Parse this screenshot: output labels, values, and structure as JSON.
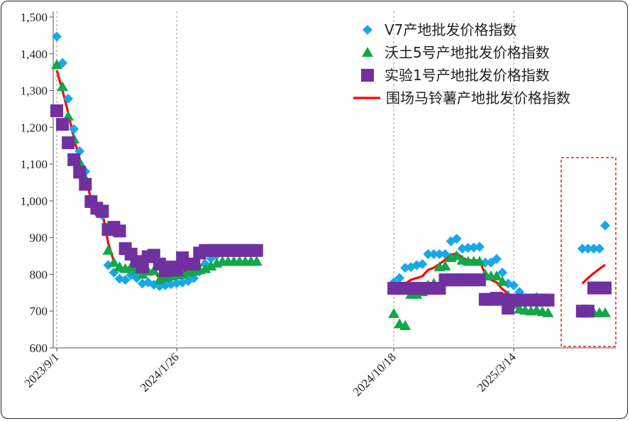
{
  "chart_data": {
    "type": "scatter",
    "title": "",
    "xlabel": "",
    "ylabel": "",
    "ylim": [
      600,
      1500
    ],
    "yticks": [
      "600",
      "700",
      "800",
      "900",
      "1,000",
      "1,100",
      "1,200",
      "1,300",
      "1,400",
      "1,500"
    ],
    "xticks": [
      "2023/9/1",
      "2024/1/26",
      "2024/10/18",
      "2025/3/14"
    ],
    "grid": "vertical dashed",
    "legend_position": "top-right",
    "highlight_box": "dashed red box around most recent period",
    "series": [
      {
        "name": "V7产地批发价格指数",
        "marker": "diamond",
        "color": "#18a8e8",
        "points": [
          [
            "2023/9/1",
            1447
          ],
          [
            "2023/9/8",
            1375
          ],
          [
            "2023/9/15",
            1278
          ],
          [
            "2023/9/22",
            1195
          ],
          [
            "2023/9/29",
            1135
          ],
          [
            "2023/10/6",
            1080
          ],
          [
            "2023/10/13",
            1000
          ],
          [
            "2023/10/20",
            968
          ],
          [
            "2023/10/27",
            960
          ],
          [
            "2023/11/3",
            825
          ],
          [
            "2023/11/10",
            805
          ],
          [
            "2023/11/17",
            788
          ],
          [
            "2023/11/24",
            785
          ],
          [
            "2023/12/1",
            798
          ],
          [
            "2023/12/8",
            790
          ],
          [
            "2023/12/15",
            775
          ],
          [
            "2023/12/22",
            778
          ],
          [
            "2023/12/29",
            772
          ],
          [
            "2024/1/5",
            768
          ],
          [
            "2024/1/12",
            770
          ],
          [
            "2024/1/19",
            773
          ],
          [
            "2024/1/26",
            776
          ],
          [
            "2024/2/2",
            778
          ],
          [
            "2024/2/9",
            782
          ],
          [
            "2024/2/16",
            790
          ],
          [
            "2024/2/23",
            808
          ],
          [
            "2024/3/1",
            828
          ],
          [
            "2024/3/8",
            843
          ],
          [
            "2024/3/15",
            853
          ],
          [
            "2024/3/22",
            858
          ],
          [
            "2024/3/29",
            861
          ],
          [
            "2024/4/5",
            863
          ],
          [
            "2024/4/12",
            863
          ],
          [
            "2024/4/19",
            863
          ],
          [
            "2024/4/26",
            863
          ],
          [
            "2024/5/3",
            863
          ],
          [
            "2024/10/18",
            778
          ],
          [
            "2024/10/25",
            790
          ],
          [
            "2024/11/1",
            818
          ],
          [
            "2024/11/8",
            820
          ],
          [
            "2024/11/15",
            825
          ],
          [
            "2024/11/22",
            828
          ],
          [
            "2024/11/29",
            855
          ],
          [
            "2024/12/6",
            855
          ],
          [
            "2024/12/13",
            855
          ],
          [
            "2024/12/20",
            855
          ],
          [
            "2024/12/27",
            890
          ],
          [
            "2025/1/3",
            897
          ],
          [
            "2025/1/10",
            870
          ],
          [
            "2025/1/17",
            872
          ],
          [
            "2025/1/24",
            873
          ],
          [
            "2025/1/31",
            875
          ],
          [
            "2025/2/7",
            832
          ],
          [
            "2025/2/14",
            832
          ],
          [
            "2025/2/21",
            842
          ],
          [
            "2025/2/28",
            805
          ],
          [
            "2025/3/7",
            775
          ],
          [
            "2025/3/14",
            770
          ],
          [
            "2025/3/21",
            752
          ],
          [
            "2025/3/28",
            735
          ],
          [
            "2025/4/4",
            735
          ],
          [
            "2025/4/11",
            738
          ],
          [
            "2025/4/18",
            735
          ],
          [
            "2025/4/25",
            733
          ],
          [
            "2025/6/6",
            870
          ],
          [
            "2025/6/13",
            870
          ],
          [
            "2025/6/20",
            870
          ],
          [
            "2025/6/27",
            870
          ],
          [
            "2025/7/4",
            933
          ]
        ]
      },
      {
        "name": "沃土5号产地批发价格指数",
        "marker": "triangle",
        "color": "#10a848",
        "points": [
          [
            "2023/9/1",
            1370
          ],
          [
            "2023/9/8",
            1310
          ],
          [
            "2023/9/15",
            1230
          ],
          [
            "2023/9/22",
            1168
          ],
          [
            "2023/9/29",
            1105
          ],
          [
            "2023/10/6",
            1060
          ],
          [
            "2023/10/13",
            1000
          ],
          [
            "2023/10/20",
            975
          ],
          [
            "2023/10/27",
            965
          ],
          [
            "2023/11/3",
            865
          ],
          [
            "2023/11/10",
            832
          ],
          [
            "2023/11/17",
            820
          ],
          [
            "2023/11/24",
            815
          ],
          [
            "2023/12/1",
            820
          ],
          [
            "2023/12/8",
            812
          ],
          [
            "2023/12/15",
            800
          ],
          [
            "2023/12/22",
            808
          ],
          [
            "2023/12/29",
            810
          ],
          [
            "2024/1/5",
            785
          ],
          [
            "2024/1/12",
            790
          ],
          [
            "2024/1/19",
            795
          ],
          [
            "2024/1/26",
            798
          ],
          [
            "2024/2/2",
            800
          ],
          [
            "2024/2/9",
            805
          ],
          [
            "2024/2/16",
            808
          ],
          [
            "2024/2/23",
            812
          ],
          [
            "2024/3/1",
            815
          ],
          [
            "2024/3/8",
            822
          ],
          [
            "2024/3/15",
            830
          ],
          [
            "2024/3/22",
            835
          ],
          [
            "2024/3/29",
            835
          ],
          [
            "2024/4/5",
            835
          ],
          [
            "2024/4/12",
            835
          ],
          [
            "2024/4/19",
            835
          ],
          [
            "2024/4/26",
            835
          ],
          [
            "2024/5/3",
            835
          ],
          [
            "2024/10/18",
            693
          ],
          [
            "2024/10/25",
            665
          ],
          [
            "2024/11/1",
            660
          ],
          [
            "2024/11/8",
            745
          ],
          [
            "2024/11/15",
            745
          ],
          [
            "2024/11/22",
            752
          ],
          [
            "2024/11/29",
            770
          ],
          [
            "2024/12/6",
            775
          ],
          [
            "2024/12/13",
            820
          ],
          [
            "2024/12/20",
            822
          ],
          [
            "2024/12/27",
            845
          ],
          [
            "2025/1/3",
            850
          ],
          [
            "2025/1/10",
            838
          ],
          [
            "2025/1/17",
            835
          ],
          [
            "2025/1/24",
            835
          ],
          [
            "2025/1/31",
            835
          ],
          [
            "2025/2/7",
            800
          ],
          [
            "2025/2/14",
            795
          ],
          [
            "2025/2/21",
            795
          ],
          [
            "2025/2/28",
            780
          ],
          [
            "2025/3/7",
            742
          ],
          [
            "2025/3/14",
            718
          ],
          [
            "2025/3/21",
            705
          ],
          [
            "2025/3/28",
            702
          ],
          [
            "2025/4/4",
            700
          ],
          [
            "2025/4/11",
            702
          ],
          [
            "2025/4/18",
            698
          ],
          [
            "2025/4/25",
            695
          ],
          [
            "2025/6/6",
            695
          ],
          [
            "2025/6/13",
            695
          ],
          [
            "2025/6/20",
            695
          ],
          [
            "2025/6/27",
            695
          ],
          [
            "2025/7/4",
            695
          ]
        ]
      },
      {
        "name": "实验1号产地批发价格指数",
        "marker": "square",
        "color": "#7030a0",
        "points": [
          [
            "2023/9/1",
            1245
          ],
          [
            "2023/9/8",
            1208
          ],
          [
            "2023/9/15",
            1158
          ],
          [
            "2023/9/22",
            1112
          ],
          [
            "2023/9/29",
            1078
          ],
          [
            "2023/10/6",
            1045
          ],
          [
            "2023/10/13",
            998
          ],
          [
            "2023/10/20",
            980
          ],
          [
            "2023/10/27",
            972
          ],
          [
            "2023/11/3",
            922
          ],
          [
            "2023/11/10",
            928
          ],
          [
            "2023/11/17",
            918
          ],
          [
            "2023/11/24",
            870
          ],
          [
            "2023/12/1",
            855
          ],
          [
            "2023/12/8",
            835
          ],
          [
            "2023/12/15",
            820
          ],
          [
            "2023/12/22",
            848
          ],
          [
            "2023/12/29",
            852
          ],
          [
            "2024/1/5",
            828
          ],
          [
            "2024/1/12",
            810
          ],
          [
            "2024/1/19",
            820
          ],
          [
            "2024/1/26",
            812
          ],
          [
            "2024/2/2",
            845
          ],
          [
            "2024/2/9",
            828
          ],
          [
            "2024/2/16",
            828
          ],
          [
            "2024/2/23",
            858
          ],
          [
            "2024/3/1",
            865
          ],
          [
            "2024/3/8",
            865
          ],
          [
            "2024/3/15",
            865
          ],
          [
            "2024/3/22",
            865
          ],
          [
            "2024/3/29",
            865
          ],
          [
            "2024/4/5",
            865
          ],
          [
            "2024/4/12",
            865
          ],
          [
            "2024/4/19",
            865
          ],
          [
            "2024/4/26",
            865
          ],
          [
            "2024/5/3",
            865
          ],
          [
            "2024/10/18",
            762
          ],
          [
            "2024/10/25",
            762
          ],
          [
            "2024/11/1",
            762
          ],
          [
            "2024/11/8",
            762
          ],
          [
            "2024/11/15",
            762
          ],
          [
            "2024/11/22",
            762
          ],
          [
            "2024/11/29",
            762
          ],
          [
            "2024/12/6",
            762
          ],
          [
            "2024/12/13",
            762
          ],
          [
            "2024/12/20",
            785
          ],
          [
            "2024/12/27",
            785
          ],
          [
            "2025/1/3",
            785
          ],
          [
            "2025/1/10",
            785
          ],
          [
            "2025/1/17",
            785
          ],
          [
            "2025/1/24",
            785
          ],
          [
            "2025/1/31",
            785
          ],
          [
            "2025/2/7",
            732
          ],
          [
            "2025/2/14",
            732
          ],
          [
            "2025/2/21",
            735
          ],
          [
            "2025/2/28",
            732
          ],
          [
            "2025/3/7",
            708
          ],
          [
            "2025/3/14",
            730
          ],
          [
            "2025/3/21",
            730
          ],
          [
            "2025/3/28",
            730
          ],
          [
            "2025/4/4",
            730
          ],
          [
            "2025/4/11",
            730
          ],
          [
            "2025/4/18",
            730
          ],
          [
            "2025/4/25",
            730
          ],
          [
            "2025/6/6",
            700
          ],
          [
            "2025/6/13",
            700
          ],
          [
            "2025/6/20",
            763
          ],
          [
            "2025/6/27",
            763
          ],
          [
            "2025/7/4",
            763
          ]
        ]
      },
      {
        "name": "围场马铃薯产地批发价格指数",
        "marker": "line",
        "color": "#ff0000",
        "segments": [
          [
            [
              "2023/9/1",
              1355
            ],
            [
              "2023/9/8",
              1300
            ],
            [
              "2023/9/15",
              1240
            ],
            [
              "2023/9/22",
              1170
            ],
            [
              "2023/9/29",
              1115
            ],
            [
              "2023/10/6",
              1075
            ],
            [
              "2023/10/13",
              1000
            ],
            [
              "2023/10/20",
              980
            ],
            [
              "2023/10/27",
              968
            ],
            [
              "2023/11/3",
              885
            ],
            [
              "2023/11/10",
              835
            ],
            [
              "2023/11/17",
              810
            ],
            [
              "2023/11/24",
              808
            ],
            [
              "2023/12/1",
              818
            ],
            [
              "2023/12/8",
              810
            ],
            [
              "2023/12/15",
              795
            ],
            [
              "2023/12/22",
              808
            ],
            [
              "2023/12/29",
              808
            ],
            [
              "2024/1/5",
              790
            ],
            [
              "2024/1/12",
              795
            ],
            [
              "2024/1/19",
              800
            ],
            [
              "2024/1/26",
              805
            ],
            [
              "2024/2/2",
              810
            ],
            [
              "2024/2/9",
              808
            ],
            [
              "2024/2/16",
              808
            ],
            [
              "2024/2/23",
              820
            ],
            [
              "2024/3/1",
              840
            ]
          ],
          [
            [
              "2024/10/25",
              752
            ],
            [
              "2024/11/1",
              775
            ],
            [
              "2024/11/8",
              785
            ],
            [
              "2024/11/15",
              790
            ],
            [
              "2024/11/22",
              795
            ],
            [
              "2024/11/29",
              812
            ],
            [
              "2024/12/6",
              818
            ],
            [
              "2024/12/13",
              828
            ],
            [
              "2024/12/20",
              840
            ],
            [
              "2024/12/27",
              852
            ],
            [
              "2025/1/3",
              858
            ],
            [
              "2025/1/10",
              845
            ],
            [
              "2025/1/17",
              838
            ],
            [
              "2025/1/24",
              838
            ],
            [
              "2025/1/31",
              838
            ],
            [
              "2025/2/7",
              800
            ],
            [
              "2025/2/14",
              785
            ],
            [
              "2025/2/21",
              778
            ],
            [
              "2025/2/28",
              760
            ],
            [
              "2025/3/7",
              748
            ]
          ],
          [
            [
              "2025/6/6",
              775
            ],
            [
              "2025/6/13",
              790
            ],
            [
              "2025/6/20",
              803
            ],
            [
              "2025/6/27",
              815
            ],
            [
              "2025/7/4",
              826
            ]
          ]
        ]
      }
    ]
  }
}
